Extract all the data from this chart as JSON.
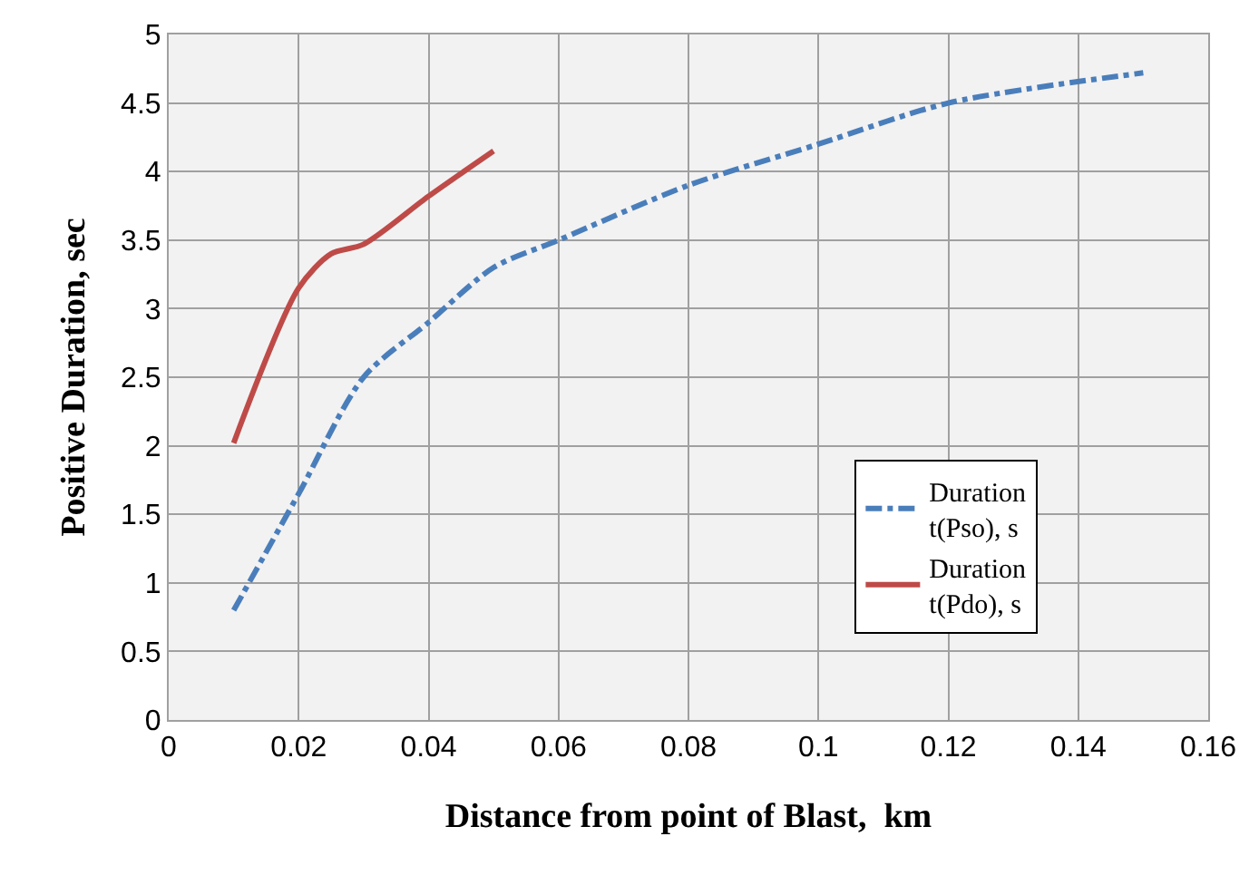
{
  "chart_data": {
    "type": "line",
    "xlabel": "Distance from point of Blast,  km",
    "ylabel": "Positive Duration, sec",
    "xlim": [
      0,
      0.16
    ],
    "xticks": [
      0,
      0.02,
      0.04,
      0.06,
      0.08,
      0.1,
      0.12,
      0.14,
      0.16
    ],
    "ylim": [
      0,
      5
    ],
    "yticks": [
      0,
      0.5,
      1,
      1.5,
      2,
      2.5,
      3,
      3.5,
      4,
      4.5,
      5
    ],
    "grid": true,
    "legend": "right",
    "marker": "none",
    "series": [
      {
        "name": "Duration t(Pso), s",
        "color": "#4a7ebb",
        "line_style": "dashdot",
        "x": [
          0.01,
          0.02,
          0.03,
          0.04,
          0.05,
          0.06,
          0.08,
          0.1,
          0.12,
          0.15
        ],
        "values": [
          0.8,
          1.65,
          2.5,
          2.9,
          3.3,
          3.5,
          3.9,
          4.2,
          4.5,
          4.72
        ]
      },
      {
        "name": "Duration t(Pdo), s",
        "color": "#be4b48",
        "line_style": "solid",
        "x": [
          0.01,
          0.02,
          0.025,
          0.03,
          0.04,
          0.05
        ],
        "values": [
          2.02,
          3.15,
          3.4,
          3.47,
          3.82,
          4.15
        ]
      }
    ]
  }
}
